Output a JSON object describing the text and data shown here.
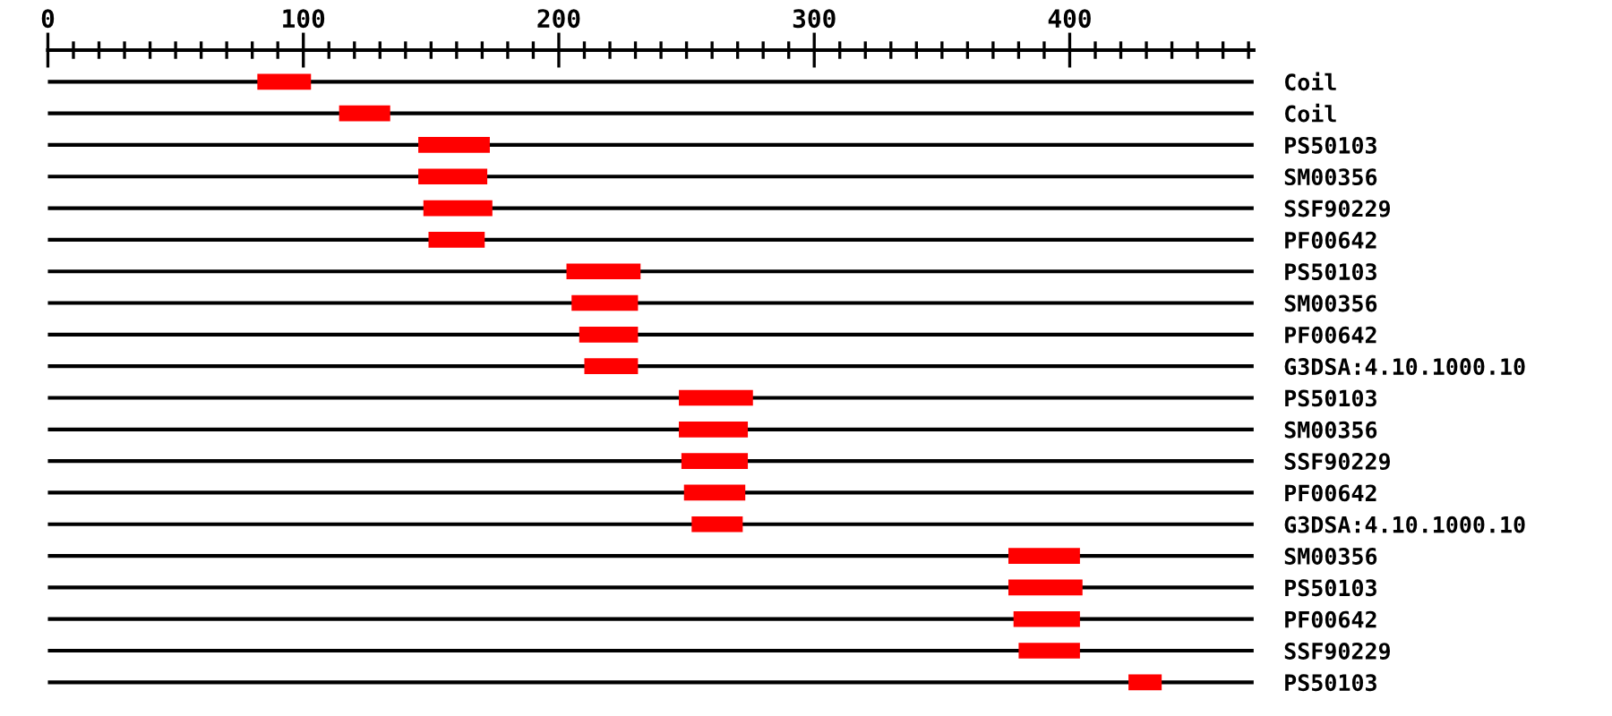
{
  "chart_data": {
    "type": "bar",
    "orientation": "horizontal",
    "categories": [
      "Coil",
      "Coil",
      "PS50103",
      "SM00356",
      "SSF90229",
      "PF00642",
      "PS50103",
      "SM00356",
      "PF00642",
      "G3DSA:4.10.1000.10",
      "PS50103",
      "SM00356",
      "SSF90229",
      "PF00642",
      "G3DSA:4.10.1000.10",
      "SM00356",
      "PS50103",
      "PF00642",
      "SSF90229",
      "PS50103"
    ],
    "base": [
      82,
      114,
      145,
      145,
      147,
      149,
      203,
      205,
      208,
      210,
      247,
      247,
      248,
      249,
      252,
      376,
      376,
      378,
      380,
      423
    ],
    "values": [
      21,
      20,
      28,
      27,
      27,
      22,
      29,
      26,
      23,
      21,
      29,
      27,
      26,
      24,
      20,
      28,
      29,
      26,
      24,
      13
    ],
    "color": "#ff0000",
    "xlim": [
      0,
      472
    ],
    "xticks": [
      0,
      {
        "value": 10,
        "label": null
      },
      {
        "value": 20,
        "label": null
      },
      {
        "value": 30,
        "label": null
      },
      {
        "value": 40,
        "label": null
      },
      {
        "value": 50,
        "label": null
      },
      {
        "value": 60,
        "label": null
      },
      {
        "value": 70,
        "label": null
      },
      {
        "value": 80,
        "label": null
      },
      {
        "value": 90,
        "label": null
      },
      100,
      {
        "value": 110,
        "label": null
      },
      {
        "value": 120,
        "label": null
      },
      {
        "value": 130,
        "label": null
      },
      {
        "value": 140,
        "label": null
      },
      {
        "value": 150,
        "label": null
      },
      {
        "value": 160,
        "label": null
      },
      {
        "value": 170,
        "label": null
      },
      {
        "value": 180,
        "label": null
      },
      {
        "value": 190,
        "label": null
      },
      200,
      {
        "value": 210,
        "label": null
      },
      {
        "value": 220,
        "label": null
      },
      {
        "value": 230,
        "label": null
      },
      {
        "value": 240,
        "label": null
      },
      {
        "value": 250,
        "label": null
      },
      {
        "value": 260,
        "label": null
      },
      {
        "value": 270,
        "label": null
      },
      {
        "value": 280,
        "label": null
      },
      {
        "value": 290,
        "label": null
      },
      300,
      {
        "value": 310,
        "label": null
      },
      {
        "value": 320,
        "label": null
      },
      {
        "value": 330,
        "label": null
      },
      {
        "value": 340,
        "label": null
      },
      {
        "value": 350,
        "label": null
      },
      {
        "value": 360,
        "label": null
      },
      {
        "value": 370,
        "label": null
      },
      {
        "value": 380,
        "label": null
      },
      {
        "value": 390,
        "label": null
      },
      400,
      {
        "value": 410,
        "label": null
      },
      {
        "value": 420,
        "label": null
      },
      {
        "value": 430,
        "label": null
      },
      {
        "value": 440,
        "label": null
      },
      {
        "value": 450,
        "label": null
      },
      {
        "value": 460,
        "label": null
      },
      {
        "value": 470,
        "label": null
      }
    ],
    "grid": "y"
  }
}
